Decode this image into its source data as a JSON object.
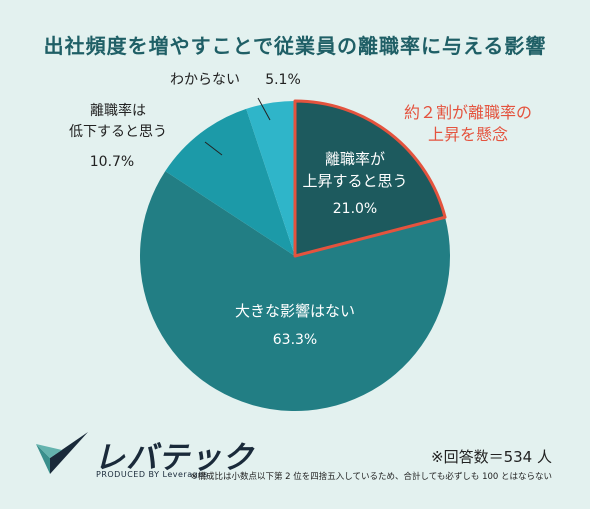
{
  "title": "出社頻度を増やすことで従業員の離職率に与える影響",
  "chart_data": {
    "type": "pie",
    "start_angle_deg": 0,
    "direction": "clockwise",
    "slices": [
      {
        "label": "離職率が上昇すると思う",
        "label_lines": [
          "離職率が",
          "上昇すると思う"
        ],
        "value": 21.0,
        "value_text": "21.0%",
        "color": "#1d5a5e",
        "highlight": true
      },
      {
        "label": "大きな影響はない",
        "label_lines": [
          "大きな影響はない"
        ],
        "value": 63.3,
        "value_text": "63.3%",
        "color": "#227e84",
        "highlight": false
      },
      {
        "label": "離職率は低下すると思う",
        "label_lines": [
          "離職率は",
          "低下すると思う"
        ],
        "value": 10.7,
        "value_text": "10.7%",
        "color": "#1c9aa8",
        "highlight": false
      },
      {
        "label": "わからない",
        "label_lines": [
          "わからない"
        ],
        "value": 5.1,
        "value_text": "5.1%",
        "color": "#2fb5c9",
        "highlight": false
      }
    ],
    "callout": {
      "lines": [
        "約２割が離職率の",
        "上昇を懸念"
      ],
      "color": "#e4533e"
    },
    "highlight_border_color": "#e4533e"
  },
  "footer": {
    "total": "※回答数＝534 人",
    "note": "※構成比は小数点以下第 2 位を四捨五入しているため、合計しても必ずしも 100 とはならない"
  },
  "logo": {
    "text": "レバテック",
    "sub": "PRODUCED BY Leverages"
  }
}
